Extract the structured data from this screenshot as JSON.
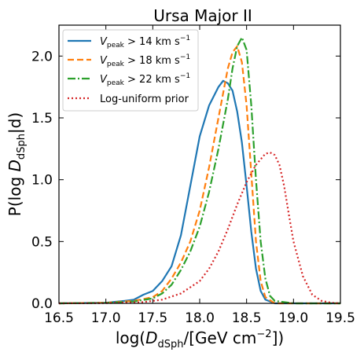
{
  "chart_data": {
    "type": "line",
    "title": "Ursa Major II",
    "xlabel": {
      "pre": "log(",
      "main": "D",
      "sub": "dSph",
      "post": "/[GeV cm",
      "sup": "−2",
      "end": "])"
    },
    "ylabel": {
      "pre": "P(log ",
      "main": "D",
      "sub": "dSph",
      "post": "|d)"
    },
    "xlim": [
      16.5,
      19.5
    ],
    "ylim": [
      0.0,
      2.25
    ],
    "xticks": [
      16.5,
      17.0,
      17.5,
      18.0,
      18.5,
      19.0,
      19.5
    ],
    "xtick_labels": [
      "16.5",
      "17.0",
      "17.5",
      "18.0",
      "18.5",
      "19.0",
      "19.5"
    ],
    "yticks": [
      0.0,
      0.5,
      1.0,
      1.5,
      2.0
    ],
    "ytick_labels": [
      "0.0",
      "0.5",
      "1.0",
      "1.5",
      "2.0"
    ],
    "legend_position": "top-left",
    "grid": false,
    "series": [
      {
        "name": "V_peak > 14 km s^-1",
        "legend": {
          "main": "V",
          "sub": "peak",
          "rest": " > 14 km s",
          "sup": "−1"
        },
        "color": "#1f77b4",
        "dash": "solid",
        "x": [
          16.5,
          17.0,
          17.2,
          17.3,
          17.4,
          17.5,
          17.6,
          17.7,
          17.8,
          17.9,
          18.0,
          18.1,
          18.2,
          18.25,
          18.3,
          18.35,
          18.4,
          18.45,
          18.5,
          18.55,
          18.6,
          18.65,
          18.7,
          18.8,
          19.0,
          19.5
        ],
        "y": [
          0.0,
          0.005,
          0.02,
          0.03,
          0.07,
          0.1,
          0.18,
          0.3,
          0.55,
          0.95,
          1.35,
          1.6,
          1.75,
          1.8,
          1.78,
          1.72,
          1.55,
          1.3,
          0.95,
          0.58,
          0.28,
          0.1,
          0.03,
          0.0,
          0.0,
          0.0
        ]
      },
      {
        "name": "V_peak > 18 km s^-1",
        "legend": {
          "main": "V",
          "sub": "peak",
          "rest": " > 18 km s",
          "sup": "−1"
        },
        "color": "#ff7f0e",
        "dash": "dashed",
        "x": [
          16.5,
          17.0,
          17.3,
          17.5,
          17.6,
          17.7,
          17.8,
          17.9,
          18.0,
          18.1,
          18.2,
          18.3,
          18.35,
          18.4,
          18.45,
          18.5,
          18.55,
          18.6,
          18.65,
          18.7,
          18.8,
          19.0,
          19.5
        ],
        "y": [
          0.0,
          0.005,
          0.02,
          0.05,
          0.1,
          0.2,
          0.33,
          0.5,
          0.75,
          1.1,
          1.5,
          1.9,
          2.03,
          2.08,
          1.95,
          1.6,
          1.05,
          0.5,
          0.18,
          0.05,
          0.0,
          0.0,
          0.0
        ]
      },
      {
        "name": "V_peak > 22 km s^-1",
        "legend": {
          "main": "V",
          "sub": "peak",
          "rest": " > 22 km s",
          "sup": "−1"
        },
        "color": "#2ca02c",
        "dash": "dashdot",
        "x": [
          16.5,
          17.0,
          17.3,
          17.5,
          17.6,
          17.7,
          17.8,
          17.9,
          18.0,
          18.1,
          18.2,
          18.3,
          18.35,
          18.4,
          18.45,
          18.5,
          18.55,
          18.6,
          18.65,
          18.7,
          18.75,
          18.8,
          19.0,
          19.5
        ],
        "y": [
          0.0,
          0.004,
          0.015,
          0.04,
          0.08,
          0.15,
          0.27,
          0.42,
          0.62,
          0.9,
          1.25,
          1.65,
          1.9,
          2.08,
          2.15,
          2.05,
          1.6,
          1.0,
          0.5,
          0.2,
          0.06,
          0.02,
          0.0,
          0.0
        ]
      },
      {
        "name": "Log-uniform prior",
        "legend": {
          "main": "Log-uniform prior",
          "sub": "",
          "rest": "",
          "sup": ""
        },
        "color": "#d62728",
        "dash": "dotted",
        "x": [
          16.5,
          17.0,
          17.4,
          17.6,
          17.8,
          18.0,
          18.1,
          18.2,
          18.3,
          18.4,
          18.5,
          18.6,
          18.7,
          18.75,
          18.8,
          18.85,
          18.9,
          18.95,
          19.0,
          19.1,
          19.2,
          19.3,
          19.4,
          19.5
        ],
        "y": [
          0.0,
          0.002,
          0.01,
          0.03,
          0.08,
          0.18,
          0.28,
          0.42,
          0.6,
          0.8,
          0.98,
          1.12,
          1.21,
          1.22,
          1.2,
          1.12,
          0.95,
          0.72,
          0.5,
          0.22,
          0.07,
          0.02,
          0.005,
          0.0
        ]
      }
    ]
  }
}
